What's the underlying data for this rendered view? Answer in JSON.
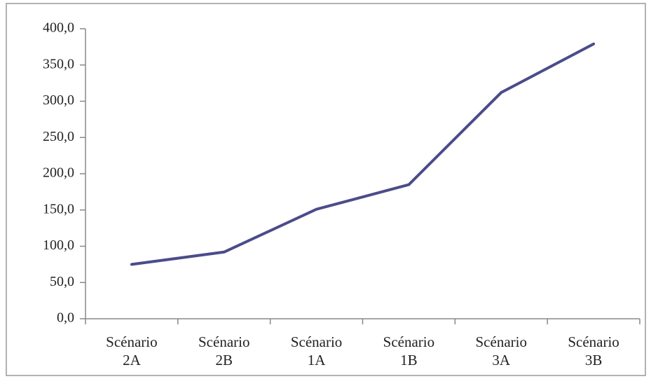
{
  "chart_data": {
    "type": "line",
    "categories": [
      "Scénario 2A",
      "Scénario 2B",
      "Scénario 1A",
      "Scénario 1B",
      "Scénario 3A",
      "Scénario 3B"
    ],
    "series": [
      {
        "color": "#4b4c8a",
        "values": [
          75,
          92,
          151,
          185,
          312,
          379
        ]
      }
    ],
    "ylim": [
      0,
      400
    ],
    "yticks": [
      {
        "value": 0,
        "label": "0,0"
      },
      {
        "value": 50,
        "label": "50,0"
      },
      {
        "value": 100,
        "label": "100,0"
      },
      {
        "value": 150,
        "label": "150,0"
      },
      {
        "value": 200,
        "label": "200,0"
      },
      {
        "value": 250,
        "label": "250,0"
      },
      {
        "value": 300,
        "label": "300,0"
      },
      {
        "value": 350,
        "label": "350,0"
      },
      {
        "value": 400,
        "label": "400,0"
      }
    ],
    "grid": false
  }
}
